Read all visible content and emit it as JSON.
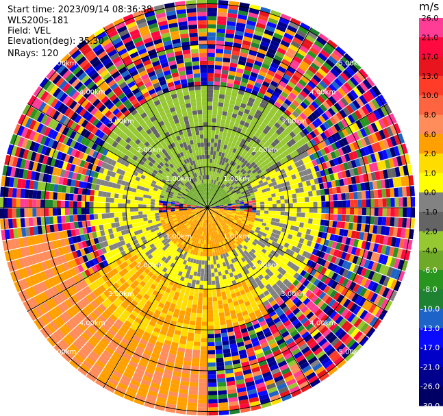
{
  "header": {
    "start_time": "Start time: 2023/09/14 08:36:38",
    "instrument": "WLS200s-181",
    "field": "Field: VEL",
    "elevation": "Elevation(deg): 35.30",
    "nrays": "NRays: 120"
  },
  "colorbar": {
    "unit": "m/s",
    "ticks": [
      "26.0",
      "21.0",
      "17.0",
      "13.0",
      "10.0",
      "8.0",
      "6.0",
      "2.0",
      "1.0",
      "0.0",
      "-1.0",
      "-2.0",
      "-4.0",
      "-6.0",
      "-8.0",
      "-10.0",
      "-13.0",
      "-17.0",
      "-21.0",
      "-26.0",
      "-30.0"
    ],
    "colors": [
      "#ff3c96",
      "#ff0a40",
      "#e8141e",
      "#ff3c28",
      "#ff6440",
      "#ff8c5a",
      "#ffa000",
      "#ffdc00",
      "#ffff00",
      "#828282",
      "#646464",
      "#96c832",
      "#6eaa28",
      "#28961e",
      "#1e8232",
      "#1e64c8",
      "#0a0aff",
      "#0000c8",
      "#00008c",
      "#000064"
    ]
  },
  "chart_data": {
    "type": "heatmap",
    "subtype": "ppi-polar",
    "field": "VEL",
    "units": "m/s",
    "nrays": 120,
    "elevation_deg": 35.3,
    "range_rings_km": [
      1.0,
      2.0,
      3.0,
      4.0,
      5.0
    ],
    "ring_labels": [
      "1.00km",
      "2.00km",
      "3.00km",
      "4.00km",
      "5.00km"
    ],
    "max_range_km": 5.1,
    "gate_km": 0.05,
    "radial_spokes_deg": [
      0,
      30,
      60,
      90,
      120,
      150,
      180,
      210,
      240,
      270,
      300,
      330
    ],
    "value_regions": [
      {
        "range_km": [
          0.0,
          0.6
        ],
        "bearing_deg": [
          280,
          80
        ],
        "typical_value": -5.0
      },
      {
        "range_km": [
          0.0,
          1.2
        ],
        "bearing_deg": [
          95,
          265
        ],
        "typical_value": 2.5
      },
      {
        "range_km": [
          0.6,
          1.6
        ],
        "bearing_deg": [
          280,
          80
        ],
        "typical_value": -2.2
      },
      {
        "range_km": [
          1.2,
          2.8
        ],
        "bearing_deg": [
          60,
          300
        ],
        "typical_value": 0.2
      },
      {
        "range_km": [
          1.6,
          3.0
        ],
        "bearing_deg": [
          300,
          60
        ],
        "typical_value": -2.5
      },
      {
        "range_km": [
          2.0,
          3.5
        ],
        "bearing_deg": [
          150,
          240
        ],
        "typical_value": 2.0
      },
      {
        "range_km": [
          3.5,
          5.1
        ],
        "bearing_deg": [
          180,
          260
        ],
        "typical_value": 6.0
      },
      {
        "range_km": [
          3.0,
          5.1
        ],
        "bearing_deg": [
          260,
          180
        ],
        "typical_value": "noise"
      }
    ]
  }
}
